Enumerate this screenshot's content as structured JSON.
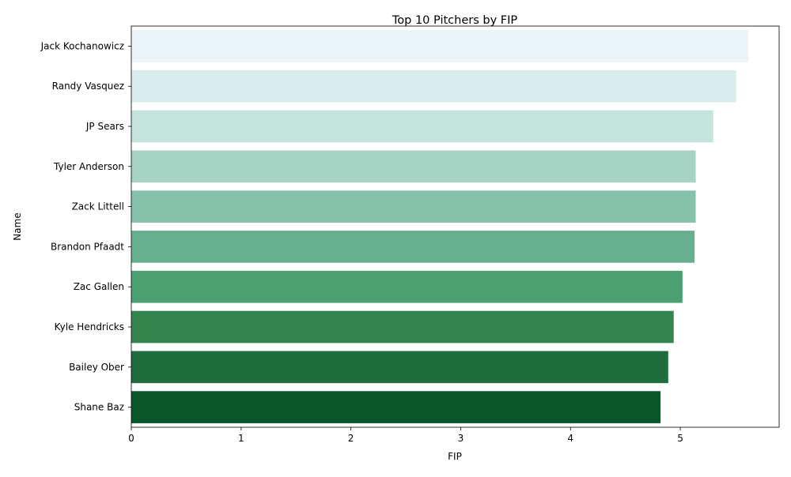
{
  "chart_data": {
    "type": "bar",
    "orientation": "horizontal",
    "title": "Top 10 Pitchers by FIP",
    "xlabel": "FIP",
    "ylabel": "Name",
    "categories": [
      "Jack Kochanowicz",
      "Randy Vasquez",
      "JP Sears",
      "Tyler Anderson",
      "Zack Littell",
      "Brandon Pfaadt",
      "Zac Gallen",
      "Kyle Hendricks",
      "Bailey Ober",
      "Shane Baz"
    ],
    "values": [
      5.62,
      5.51,
      5.3,
      5.14,
      5.14,
      5.13,
      5.02,
      4.94,
      4.89,
      4.82
    ],
    "colors": [
      "#ebf5f7",
      "#daedec",
      "#c6e4de",
      "#a6d3c4",
      "#86c1ab",
      "#66b08f",
      "#4c9f71",
      "#34844f",
      "#1f6c3c",
      "#0b552b"
    ],
    "xlim": [
      0,
      5.9
    ],
    "xticks": [
      "0",
      "1",
      "2",
      "3",
      "4",
      "5"
    ],
    "grid": false,
    "legend": "none"
  }
}
